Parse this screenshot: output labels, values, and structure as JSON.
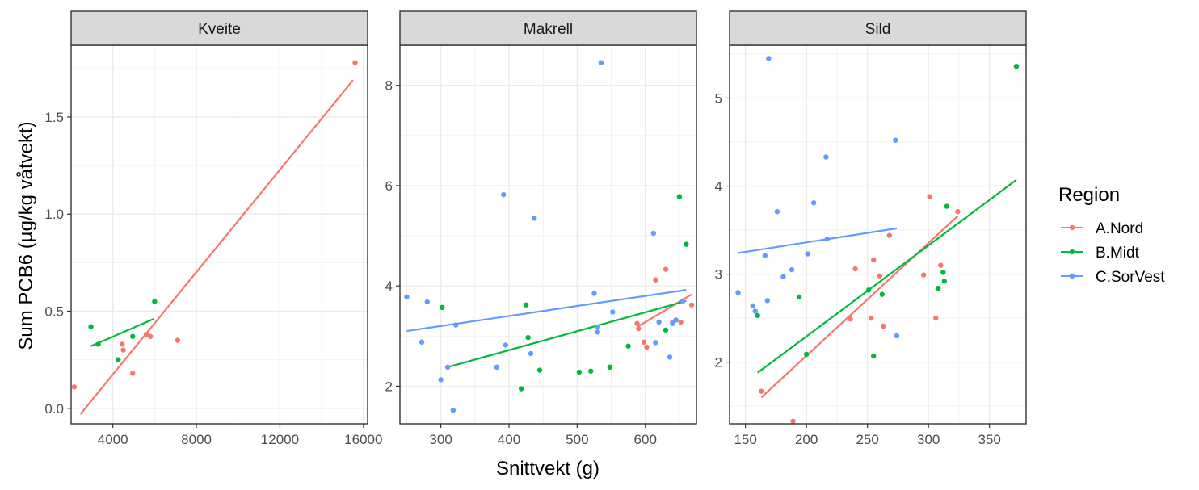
{
  "chart_data": {
    "type": "scatter",
    "xlabel": "Snittvekt (g)",
    "ylabel": "Sum PCB6 (µg/kg våtvekt)",
    "legend": {
      "title": "Region",
      "position": "right",
      "entries": [
        {
          "name": "A.Nord",
          "color": "#F8766D"
        },
        {
          "name": "B.Midt",
          "color": "#00BA38"
        },
        {
          "name": "C.SorVest",
          "color": "#619CFF"
        }
      ]
    },
    "panels": [
      {
        "name": "Kveite",
        "xlim": [
          2000,
          16200
        ],
        "ylim": [
          -0.08,
          1.87
        ],
        "xticks": [
          {
            "v": 4000,
            "label": "4000"
          },
          {
            "v": 8000,
            "label": "8000"
          },
          {
            "v": 12000,
            "label": "12000"
          },
          {
            "v": 16000,
            "label": "16000"
          }
        ],
        "yticks": [
          {
            "v": 0.0,
            "label": "0.0"
          },
          {
            "v": 0.5,
            "label": "0.5"
          },
          {
            "v": 1.0,
            "label": "1.0"
          },
          {
            "v": 1.5,
            "label": "1.5"
          }
        ],
        "series": [
          {
            "name": "A.Nord",
            "points": [
              [
                2150,
                0.11
              ],
              [
                4450,
                0.33
              ],
              [
                4500,
                0.3
              ],
              [
                4950,
                0.18
              ],
              [
                5600,
                0.38
              ],
              [
                5800,
                0.37
              ],
              [
                7100,
                0.35
              ],
              [
                15600,
                1.78
              ]
            ],
            "fit": [
              [
                2450,
                -0.03
              ],
              [
                15500,
                1.69
              ]
            ]
          },
          {
            "name": "B.Midt",
            "points": [
              [
                2950,
                0.42
              ],
              [
                3300,
                0.33
              ],
              [
                4250,
                0.25
              ],
              [
                4950,
                0.37
              ],
              [
                6000,
                0.55
              ]
            ],
            "fit": [
              [
                2950,
                0.32
              ],
              [
                5950,
                0.46
              ]
            ]
          }
        ]
      },
      {
        "name": "Makrell",
        "xlim": [
          240,
          675
        ],
        "ylim": [
          1.25,
          8.8
        ],
        "xticks": [
          {
            "v": 300,
            "label": "300"
          },
          {
            "v": 400,
            "label": "400"
          },
          {
            "v": 500,
            "label": "500"
          },
          {
            "v": 600,
            "label": "600"
          }
        ],
        "yticks": [
          {
            "v": 2,
            "label": "2"
          },
          {
            "v": 4,
            "label": "4"
          },
          {
            "v": 6,
            "label": "6"
          },
          {
            "v": 8,
            "label": "8"
          }
        ],
        "series": [
          {
            "name": "A.Nord",
            "points": [
              [
                588,
                3.25
              ],
              [
                590,
                3.15
              ],
              [
                598,
                2.88
              ],
              [
                602,
                2.78
              ],
              [
                615,
                4.12
              ],
              [
                630,
                4.33
              ],
              [
                640,
                3.28
              ],
              [
                652,
                3.28
              ],
              [
                668,
                3.62
              ]
            ],
            "fit": [
              [
                588,
                3.18
              ],
              [
                668,
                3.83
              ]
            ]
          },
          {
            "name": "B.Midt",
            "points": [
              [
                302,
                3.57
              ],
              [
                425,
                3.62
              ],
              [
                418,
                1.95
              ],
              [
                428,
                2.97
              ],
              [
                445,
                2.32
              ],
              [
                503,
                2.28
              ],
              [
                520,
                2.3
              ],
              [
                548,
                2.38
              ],
              [
                575,
                2.8
              ],
              [
                630,
                3.12
              ],
              [
                650,
                5.78
              ],
              [
                660,
                4.83
              ]
            ],
            "fit": [
              [
                310,
                2.38
              ],
              [
                660,
                3.7
              ]
            ]
          },
          {
            "name": "C.SorVest",
            "points": [
              [
                250,
                3.78
              ],
              [
                272,
                2.88
              ],
              [
                280,
                3.68
              ],
              [
                300,
                2.13
              ],
              [
                310,
                2.38
              ],
              [
                318,
                1.52
              ],
              [
                322,
                3.22
              ],
              [
                382,
                2.38
              ],
              [
                392,
                5.82
              ],
              [
                395,
                2.82
              ],
              [
                432,
                2.65
              ],
              [
                437,
                5.35
              ],
              [
                525,
                3.85
              ],
              [
                530,
                3.08
              ],
              [
                530,
                3.18
              ],
              [
                535,
                8.45
              ],
              [
                552,
                3.48
              ],
              [
                612,
                5.05
              ],
              [
                615,
                2.87
              ],
              [
                620,
                3.28
              ],
              [
                636,
                2.58
              ],
              [
                640,
                3.25
              ],
              [
                645,
                3.32
              ],
              [
                655,
                3.7
              ]
            ],
            "fit": [
              [
                250,
                3.1
              ],
              [
                660,
                3.92
              ]
            ]
          }
        ]
      },
      {
        "name": "Sild",
        "xlim": [
          137,
          380
        ],
        "ylim": [
          1.3,
          5.6
        ],
        "xticks": [
          {
            "v": 150,
            "label": "150"
          },
          {
            "v": 200,
            "label": "200"
          },
          {
            "v": 250,
            "label": "250"
          },
          {
            "v": 300,
            "label": "300"
          },
          {
            "v": 350,
            "label": "350"
          }
        ],
        "yticks": [
          {
            "v": 2,
            "label": "2"
          },
          {
            "v": 3,
            "label": "3"
          },
          {
            "v": 4,
            "label": "4"
          },
          {
            "v": 5,
            "label": "5"
          }
        ],
        "series": [
          {
            "name": "A.Nord",
            "points": [
              [
                163,
                1.67
              ],
              [
                189,
                1.33
              ],
              [
                236,
                2.49
              ],
              [
                240,
                3.06
              ],
              [
                253,
                2.5
              ],
              [
                255,
                3.16
              ],
              [
                260,
                2.98
              ],
              [
                263,
                2.41
              ],
              [
                268,
                3.44
              ],
              [
                296,
                2.99
              ],
              [
                301,
                3.88
              ],
              [
                306,
                2.5
              ],
              [
                310,
                3.1
              ],
              [
                324,
                3.71
              ]
            ],
            "fit": [
              [
                163,
                1.6
              ],
              [
                324,
                3.66
              ]
            ]
          },
          {
            "name": "B.Midt",
            "points": [
              [
                160,
                2.53
              ],
              [
                194,
                2.74
              ],
              [
                200,
                2.09
              ],
              [
                251,
                2.82
              ],
              [
                255,
                2.07
              ],
              [
                262,
                2.77
              ],
              [
                308,
                2.84
              ],
              [
                312,
                3.02
              ],
              [
                313,
                2.92
              ],
              [
                315,
                3.77
              ],
              [
                372,
                5.36
              ]
            ],
            "fit": [
              [
                160,
                1.88
              ],
              [
                372,
                4.07
              ]
            ]
          },
          {
            "name": "C.SorVest",
            "points": [
              [
                144,
                2.79
              ],
              [
                156,
                2.64
              ],
              [
                158,
                2.58
              ],
              [
                166,
                3.21
              ],
              [
                168,
                2.7
              ],
              [
                169,
                5.45
              ],
              [
                176,
                3.71
              ],
              [
                181,
                2.97
              ],
              [
                188,
                3.05
              ],
              [
                201,
                3.23
              ],
              [
                206,
                3.81
              ],
              [
                216,
                4.33
              ],
              [
                217,
                3.4
              ],
              [
                273,
                4.52
              ],
              [
                274,
                2.3
              ]
            ],
            "fit": [
              [
                144,
                3.24
              ],
              [
                274,
                3.52
              ]
            ]
          }
        ]
      }
    ]
  }
}
